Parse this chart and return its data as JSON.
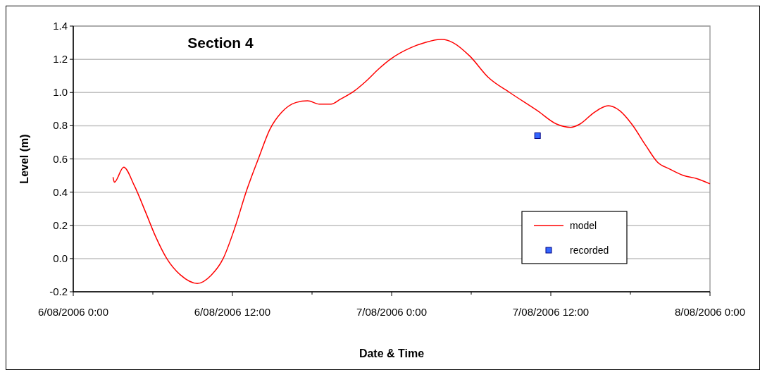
{
  "chart_data": {
    "type": "line",
    "title": "Section 4",
    "xlabel": "Date & Time",
    "ylabel": "Level (m)",
    "xlim": [
      "2006-08-06T00:00",
      "2006-08-08T00:00"
    ],
    "xticks": [
      {
        "value": "2006-08-06T00:00",
        "label": "6/08/2006 0:00"
      },
      {
        "value": "2006-08-06T06:00",
        "label": null
      },
      {
        "value": "2006-08-06T12:00",
        "label": "6/08/2006 12:00"
      },
      {
        "value": "2006-08-06T18:00",
        "label": null
      },
      {
        "value": "2006-08-07T00:00",
        "label": "7/08/2006 0:00"
      },
      {
        "value": "2006-08-07T06:00",
        "label": null
      },
      {
        "value": "2006-08-07T12:00",
        "label": "7/08/2006 12:00"
      },
      {
        "value": "2006-08-07T18:00",
        "label": null
      },
      {
        "value": "2006-08-08T00:00",
        "label": "8/08/2006 0:00"
      }
    ],
    "ylim": [
      -0.2,
      1.4
    ],
    "yticks": [
      {
        "value": -0.2,
        "label": "-0.2"
      },
      {
        "value": 0,
        "label": "0.0"
      },
      {
        "value": 0.2,
        "label": "0.2"
      },
      {
        "value": 0.4,
        "label": "0.4"
      },
      {
        "value": 0.6,
        "label": "0.6"
      },
      {
        "value": 0.8,
        "label": "0.8"
      },
      {
        "value": 1,
        "label": "1.0"
      },
      {
        "value": 1.2,
        "label": "1.2"
      },
      {
        "value": 1.4,
        "label": "1.4"
      }
    ],
    "grid": "y",
    "legend": "bottom right",
    "series": [
      {
        "name": "model",
        "color": "#ff0000",
        "marker": "none",
        "line_style": "solid",
        "x": [
          "2006-08-06T03:00",
          "2006-08-06T03:06",
          "2006-08-06T03:48",
          "2006-08-06T04:36",
          "2006-08-06T05:27",
          "2006-08-06T06:10",
          "2006-08-06T07:03",
          "2006-08-06T08:06",
          "2006-08-06T09:21",
          "2006-08-06T10:24",
          "2006-08-06T11:18",
          "2006-08-06T12:12",
          "2006-08-06T13:04",
          "2006-08-06T13:57",
          "2006-08-06T14:50",
          "2006-08-06T15:42",
          "2006-08-06T16:48",
          "2006-08-06T17:40",
          "2006-08-06T18:33",
          "2006-08-06T19:26",
          "2006-08-06T20:09",
          "2006-08-06T21:12",
          "2006-08-06T22:06",
          "2006-08-06T23:00",
          "2006-08-06T23:54",
          "2006-08-07T01:27",
          "2006-08-07T02:30",
          "2006-08-07T03:46",
          "2006-08-07T04:38",
          "2006-08-07T05:53",
          "2006-08-07T07:18",
          "2006-08-07T08:54",
          "2006-08-07T11:00",
          "2006-08-07T12:26",
          "2006-08-07T13:30",
          "2006-08-07T14:12",
          "2006-08-07T15:16",
          "2006-08-07T16:20",
          "2006-08-07T17:12",
          "2006-08-07T18:06",
          "2006-08-07T19:10",
          "2006-08-07T20:03",
          "2006-08-07T20:56",
          "2006-08-07T22:00",
          "2006-08-07T23:03",
          "2006-08-08T00:00"
        ],
        "values": [
          0.49,
          0.46,
          0.55,
          0.44,
          0.28,
          0.14,
          0.0,
          -0.1,
          -0.15,
          -0.1,
          0.0,
          0.19,
          0.41,
          0.6,
          0.78,
          0.88,
          0.94,
          0.95,
          0.93,
          0.93,
          0.96,
          1.01,
          1.07,
          1.14,
          1.2,
          1.27,
          1.3,
          1.32,
          1.3,
          1.22,
          1.09,
          1.0,
          0.89,
          0.81,
          0.79,
          0.81,
          0.88,
          0.92,
          0.89,
          0.81,
          0.68,
          0.58,
          0.54,
          0.5,
          0.48,
          0.45
        ]
      },
      {
        "name": "recorded",
        "type": "scatter",
        "color": "#3366ff",
        "marker": "square",
        "x": [
          "2006-08-07T11:00"
        ],
        "values": [
          0.74
        ]
      }
    ]
  }
}
